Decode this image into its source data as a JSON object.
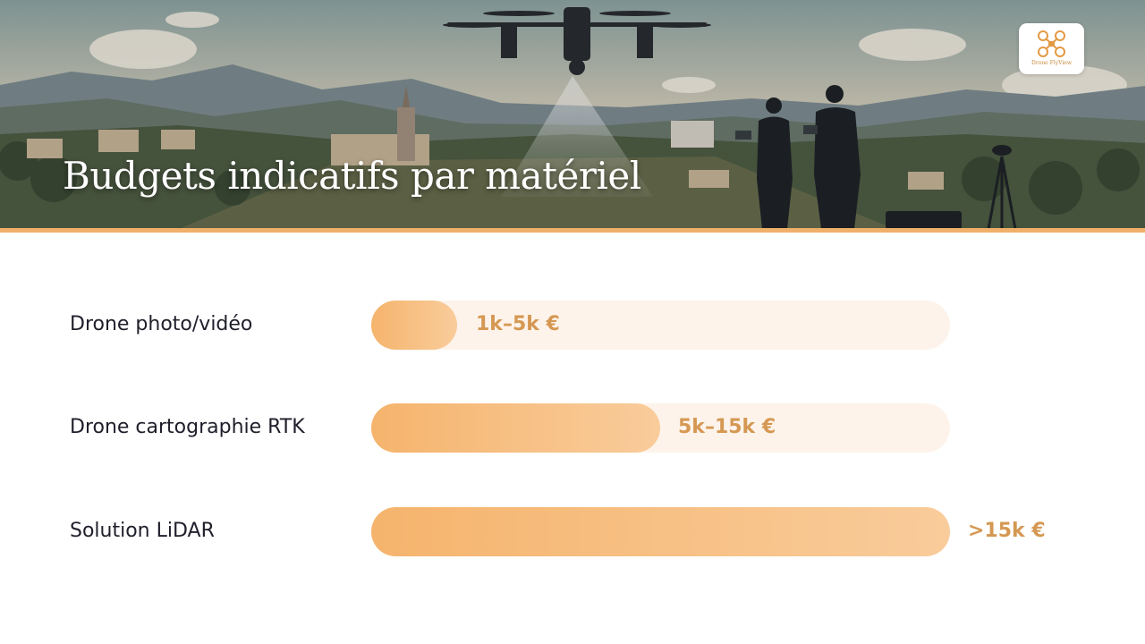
{
  "header": {
    "title": "Budgets indicatifs par matériel",
    "logo": "Drone FlyView"
  },
  "rows": [
    {
      "label": "Drone photo/vidéo",
      "budget": "1k–5k €"
    },
    {
      "label": "Drone cartographie RTK",
      "budget": "5k–15k €"
    },
    {
      "label": "Solution LiDAR",
      "budget": ">15k €"
    }
  ]
}
